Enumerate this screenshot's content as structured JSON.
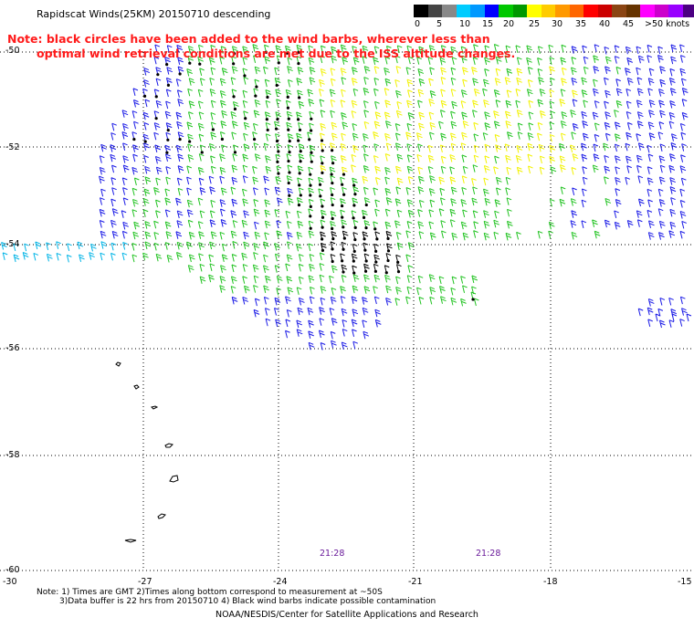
{
  "title": "Rapidscat Winds(25KM) 20150710 descending",
  "note": {
    "line1": "Note: black circles have been added to the wind barbs, wherever less than",
    "line2": "optimal wind retrieval conditions are met due to the ISS altitude changes."
  },
  "colorbar": {
    "labels": [
      "0",
      "5",
      "10",
      "15",
      "20",
      "25",
      "30",
      "35",
      "40",
      "45",
      ">50 knots"
    ],
    "colors": [
      "#000000",
      "#444444",
      "#888888",
      "#00ccff",
      "#0099ff",
      "#0000ff",
      "#00c800",
      "#009900",
      "#ffff00",
      "#ffcc00",
      "#ff9900",
      "#ff6600",
      "#ff0000",
      "#cc0000",
      "#8b4513",
      "#663300",
      "#ff00ff",
      "#cc00cc",
      "#9900ff",
      "#4b0082"
    ]
  },
  "lat_labels": [
    "-50",
    "-52",
    "-54",
    "-56",
    "-58",
    "-60"
  ],
  "lon_labels": [
    "-30",
    "-27",
    "-24",
    "-21",
    "-18",
    "-15"
  ],
  "time_labels": [
    "21:28",
    "21:28"
  ],
  "footnote": {
    "line1": "Note: 1) Times are GMT 2)Times along bottom correspond to measurement at ~50S",
    "line2": "3)Data buffer is 22 hrs from 20150710 4) Black wind barbs indicate possible contamination"
  },
  "credit": "NOAA/NESDIS/Center for Satellite Applications and Research",
  "barb_colors": {
    "blue": "#1a1ae6",
    "green": "#22c322",
    "yellow": "#f2f200",
    "cyan": "#00b4e6",
    "black": "#000000"
  }
}
